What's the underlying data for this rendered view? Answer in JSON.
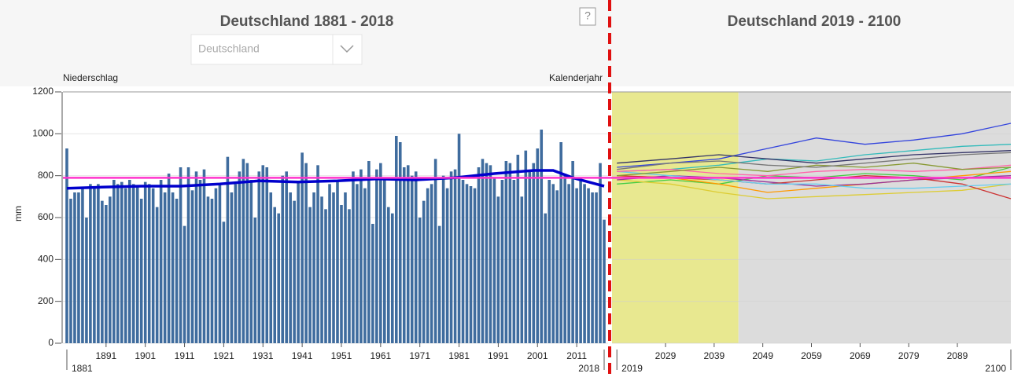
{
  "chart_data": [
    {
      "type": "bar",
      "title": "Deutschland 1881 - 2018",
      "region_select": "Deutschland",
      "help": "?",
      "y_label": "Niederschlag",
      "x_label": "Kalenderjahr",
      "unit_label": "mm",
      "color": "#3f6c9e",
      "x": [
        1881,
        1882,
        1883,
        1884,
        1885,
        1886,
        1887,
        1888,
        1889,
        1890,
        1891,
        1892,
        1893,
        1894,
        1895,
        1896,
        1897,
        1898,
        1899,
        1900,
        1901,
        1902,
        1903,
        1904,
        1905,
        1906,
        1907,
        1908,
        1909,
        1910,
        1911,
        1912,
        1913,
        1914,
        1915,
        1916,
        1917,
        1918,
        1919,
        1920,
        1921,
        1922,
        1923,
        1924,
        1925,
        1926,
        1927,
        1928,
        1929,
        1930,
        1931,
        1932,
        1933,
        1934,
        1935,
        1936,
        1937,
        1938,
        1939,
        1940,
        1941,
        1942,
        1943,
        1944,
        1945,
        1946,
        1947,
        1948,
        1949,
        1950,
        1951,
        1952,
        1953,
        1954,
        1955,
        1956,
        1957,
        1958,
        1959,
        1960,
        1961,
        1962,
        1963,
        1964,
        1965,
        1966,
        1967,
        1968,
        1969,
        1970,
        1971,
        1972,
        1973,
        1974,
        1975,
        1976,
        1977,
        1978,
        1979,
        1980,
        1981,
        1982,
        1983,
        1984,
        1985,
        1986,
        1987,
        1988,
        1989,
        1990,
        1991,
        1992,
        1993,
        1994,
        1995,
        1996,
        1997,
        1998,
        1999,
        2000,
        2001,
        2002,
        2003,
        2004,
        2005,
        2006,
        2007,
        2008,
        2009,
        2010,
        2011,
        2012,
        2013,
        2014,
        2015,
        2016,
        2017,
        2018
      ],
      "values": [
        930,
        690,
        720,
        720,
        740,
        600,
        760,
        740,
        760,
        680,
        660,
        700,
        780,
        760,
        770,
        740,
        780,
        760,
        750,
        690,
        770,
        760,
        740,
        650,
        780,
        720,
        810,
        720,
        690,
        840,
        560,
        840,
        730,
        820,
        780,
        830,
        700,
        690,
        740,
        760,
        580,
        890,
        720,
        760,
        820,
        880,
        860,
        780,
        600,
        820,
        850,
        840,
        720,
        650,
        620,
        800,
        820,
        720,
        680,
        770,
        910,
        860,
        650,
        720,
        850,
        700,
        640,
        760,
        720,
        780,
        660,
        720,
        640,
        820,
        760,
        830,
        740,
        870,
        570,
        830,
        860,
        780,
        650,
        620,
        990,
        960,
        840,
        850,
        800,
        820,
        600,
        680,
        740,
        760,
        880,
        560,
        800,
        740,
        820,
        830,
        1000,
        780,
        760,
        750,
        740,
        840,
        880,
        860,
        850,
        790,
        700,
        780,
        870,
        860,
        780,
        900,
        700,
        920,
        820,
        860,
        930,
        1020,
        620,
        780,
        760,
        730,
        960,
        810,
        760,
        870,
        740,
        780,
        760,
        740,
        720,
        720,
        860,
        590
      ],
      "trend": {
        "color": "#0000cc",
        "x": [
          1881,
          1890,
          1900,
          1910,
          1920,
          1930,
          1940,
          1950,
          1960,
          1970,
          1980,
          1990,
          2000,
          2005,
          2010,
          2018
        ],
        "values": [
          740,
          745,
          750,
          750,
          760,
          775,
          770,
          775,
          785,
          780,
          790,
          810,
          825,
          825,
          790,
          750
        ]
      },
      "mean_line": {
        "value": 790,
        "color": "#ff33cc"
      },
      "xlim": [
        1880,
        2019
      ],
      "xticks": [
        1891,
        1901,
        1911,
        1921,
        1931,
        1941,
        1951,
        1961,
        1971,
        1981,
        1991,
        2001,
        2011
      ],
      "xticks_ends": [
        1881,
        2018
      ],
      "ylim": [
        0,
        1200
      ],
      "yticks": [
        0,
        200,
        400,
        600,
        800,
        1000,
        1200
      ],
      "grid": true
    },
    {
      "type": "line",
      "title": "Deutschland 2019 - 2100",
      "x": [
        2019,
        2030,
        2040,
        2050,
        2060,
        2070,
        2080,
        2090,
        2100
      ],
      "series": [
        {
          "color": "#3344dd",
          "values": [
            840,
            860,
            880,
            930,
            980,
            950,
            970,
            1000,
            1050
          ]
        },
        {
          "color": "#33bbbb",
          "values": [
            820,
            830,
            850,
            880,
            870,
            900,
            920,
            940,
            950
          ]
        },
        {
          "color": "#333366",
          "values": [
            860,
            880,
            900,
            880,
            860,
            880,
            900,
            910,
            920
          ]
        },
        {
          "color": "#44cc44",
          "values": [
            760,
            780,
            760,
            800,
            790,
            810,
            800,
            780,
            840
          ]
        },
        {
          "color": "#ff9900",
          "values": [
            800,
            790,
            760,
            720,
            740,
            760,
            780,
            800,
            820
          ]
        },
        {
          "color": "#ddcc33",
          "values": [
            780,
            760,
            720,
            690,
            700,
            710,
            720,
            730,
            760
          ]
        },
        {
          "color": "#993399",
          "values": [
            780,
            800,
            790,
            770,
            750,
            760,
            780,
            790,
            800
          ]
        },
        {
          "color": "#cc3333",
          "values": [
            800,
            790,
            780,
            760,
            780,
            800,
            790,
            760,
            690
          ]
        },
        {
          "color": "#66ccee",
          "values": [
            820,
            800,
            780,
            760,
            760,
            740,
            740,
            750,
            760
          ]
        },
        {
          "color": "#ff66aa",
          "values": [
            820,
            830,
            810,
            800,
            820,
            830,
            820,
            830,
            850
          ]
        },
        {
          "color": "#889933",
          "values": [
            800,
            820,
            840,
            820,
            850,
            840,
            860,
            830,
            840
          ]
        },
        {
          "color": "#777777",
          "values": [
            830,
            860,
            870,
            850,
            840,
            860,
            880,
            900,
            910
          ]
        }
      ],
      "bands": [
        {
          "from": 2018,
          "to": 2044,
          "color": "#e8e890"
        },
        {
          "from": 2044,
          "to": 2100,
          "color": "#dcdcdc"
        }
      ],
      "xlim": [
        2018,
        2100
      ],
      "xticks": [
        2029,
        2039,
        2049,
        2059,
        2069,
        2079,
        2089
      ],
      "xticks_ends": [
        2019,
        2100
      ],
      "ylim": [
        0,
        1200
      ],
      "grid": true
    }
  ]
}
